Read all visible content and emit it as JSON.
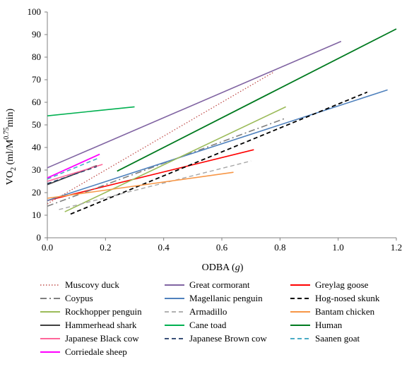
{
  "chart_data": {
    "type": "line",
    "title": "",
    "xlabel_prefix": "ODBA (",
    "xlabel_var": "g",
    "xlabel_suffix": ")",
    "ylabel": "VO2 (ml/M0.75min)",
    "ylabel_parts": {
      "base": "VO",
      "sub": "2",
      "mid": " (ml/M",
      "sup": "0.75",
      "end": "min)"
    },
    "xlim": [
      0,
      1.2
    ],
    "ylim": [
      0,
      100
    ],
    "xticks": [
      "0.0",
      "0.2",
      "0.4",
      "0.6",
      "0.8",
      "1.0",
      "1.2"
    ],
    "xtick_values": [
      0,
      0.2,
      0.4,
      0.6,
      0.8,
      1.0,
      1.2
    ],
    "yticks": [
      "0",
      "10",
      "20",
      "30",
      "40",
      "50",
      "60",
      "70",
      "80",
      "90",
      "100"
    ],
    "ytick_values": [
      0,
      10,
      20,
      30,
      40,
      50,
      60,
      70,
      80,
      90,
      100
    ],
    "grid": false,
    "legend_position": "bottom",
    "series": [
      {
        "name": "Muscovy duck",
        "color": "#c0504d",
        "dash": "dot",
        "width": 1.3,
        "x": [
          0.0,
          0.78
        ],
        "y": [
          15.0,
          73.5
        ]
      },
      {
        "name": "Great cormorant",
        "color": "#8064a2",
        "dash": "solid",
        "width": 1.6,
        "x": [
          0.0,
          1.01
        ],
        "y": [
          31.0,
          87.0
        ]
      },
      {
        "name": "Greylag goose",
        "color": "#ff0000",
        "dash": "solid",
        "width": 1.6,
        "x": [
          0.0,
          0.71
        ],
        "y": [
          16.5,
          39.0
        ]
      },
      {
        "name": "Coypus",
        "color": "#7f7f7f",
        "dash": "dashdot",
        "width": 1.6,
        "x": [
          0.0,
          0.82
        ],
        "y": [
          14.0,
          53.0
        ]
      },
      {
        "name": "Magellanic penguin",
        "color": "#4f81bd",
        "dash": "solid",
        "width": 1.6,
        "x": [
          0.0,
          1.17
        ],
        "y": [
          16.5,
          65.5
        ]
      },
      {
        "name": "Hog-nosed skunk",
        "color": "#000000",
        "dash": "dash",
        "width": 1.8,
        "x": [
          0.08,
          1.1
        ],
        "y": [
          10.5,
          64.5
        ]
      },
      {
        "name": "Rockhopper penguin",
        "color": "#9bbb59",
        "dash": "solid",
        "width": 1.6,
        "x": [
          0.06,
          0.82
        ],
        "y": [
          11.5,
          58.0
        ]
      },
      {
        "name": "Armadillo",
        "color": "#a6a6a6",
        "dash": "dash",
        "width": 1.4,
        "x": [
          0.04,
          0.7
        ],
        "y": [
          12.5,
          34.0
        ]
      },
      {
        "name": "Bantam chicken",
        "color": "#f79646",
        "dash": "solid",
        "width": 1.6,
        "x": [
          0.0,
          0.64
        ],
        "y": [
          17.5,
          29.0
        ]
      },
      {
        "name": "Hammerhead shark",
        "color": "#404040",
        "dash": "solid",
        "width": 1.6,
        "x": [
          0.0,
          0.17
        ],
        "y": [
          23.5,
          32.0
        ]
      },
      {
        "name": "Cane toad",
        "color": "#00b050",
        "dash": "solid",
        "width": 1.6,
        "x": [
          0.0,
          0.3
        ],
        "y": [
          54.0,
          58.0
        ]
      },
      {
        "name": "Human",
        "color": "#007a1f",
        "dash": "solid",
        "width": 1.8,
        "x": [
          0.24,
          1.2
        ],
        "y": [
          29.5,
          92.5
        ]
      },
      {
        "name": "Japanese Black cow",
        "color": "#ff6699",
        "dash": "solid",
        "width": 1.6,
        "x": [
          0.0,
          0.19
        ],
        "y": [
          25.0,
          32.5
        ]
      },
      {
        "name": "Japanese Brown cow",
        "color": "#1f3864",
        "dash": "dash",
        "width": 1.4,
        "x": [
          0.0,
          0.17
        ],
        "y": [
          24.0,
          31.5
        ]
      },
      {
        "name": "Saanen goat",
        "color": "#4bacc6",
        "dash": "dash",
        "width": 1.6,
        "x": [
          0.0,
          0.18
        ],
        "y": [
          26.0,
          35.5
        ]
      },
      {
        "name": "Corriedale sheep",
        "color": "#ff00ff",
        "dash": "solid",
        "width": 1.8,
        "x": [
          0.0,
          0.18
        ],
        "y": [
          26.5,
          37.0
        ]
      }
    ]
  }
}
